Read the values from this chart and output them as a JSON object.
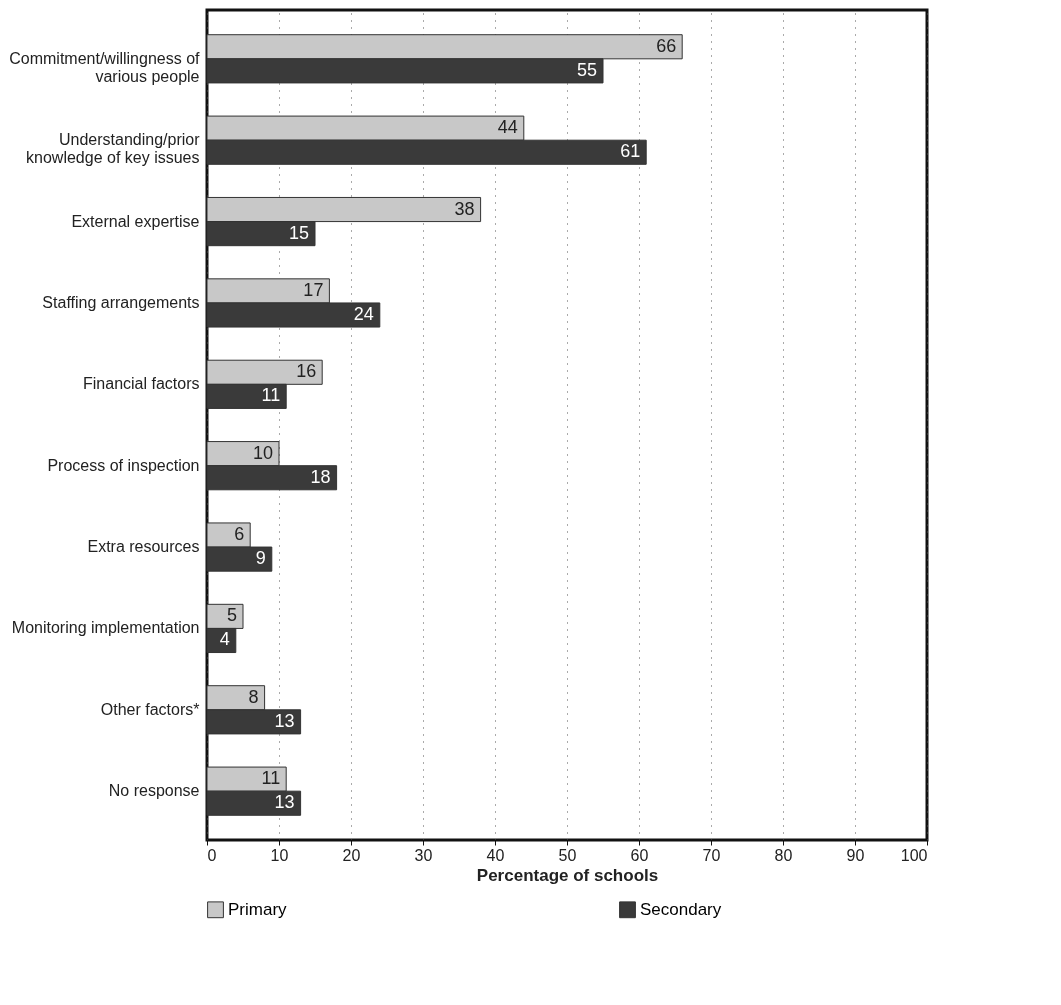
{
  "chart_data": {
    "type": "bar",
    "orientation": "horizontal",
    "xlabel": "Percentage of schools",
    "categories": [
      "Commitment/willingness of various people",
      "Understanding/prior knowledge of key issues",
      "External expertise",
      "Staffing arrangements",
      "Financial factors",
      "Process of inspection",
      "Extra resources",
      "Monitoring implementation",
      "Other factors*",
      "No response"
    ],
    "series": [
      {
        "name": "Primary",
        "color": "#c8c8c8",
        "values": [
          66,
          44,
          38,
          17,
          16,
          10,
          6,
          5,
          8,
          11
        ]
      },
      {
        "name": "Secondary",
        "color": "#3a3a3a",
        "values": [
          55,
          61,
          15,
          24,
          11,
          18,
          9,
          4,
          13,
          13
        ]
      }
    ],
    "xlim": [
      0,
      100
    ],
    "xticks": [
      0,
      10,
      20,
      30,
      40,
      50,
      60,
      70,
      80,
      90,
      100
    ],
    "grid": "x",
    "data_labels": true,
    "legend": "bottom"
  }
}
